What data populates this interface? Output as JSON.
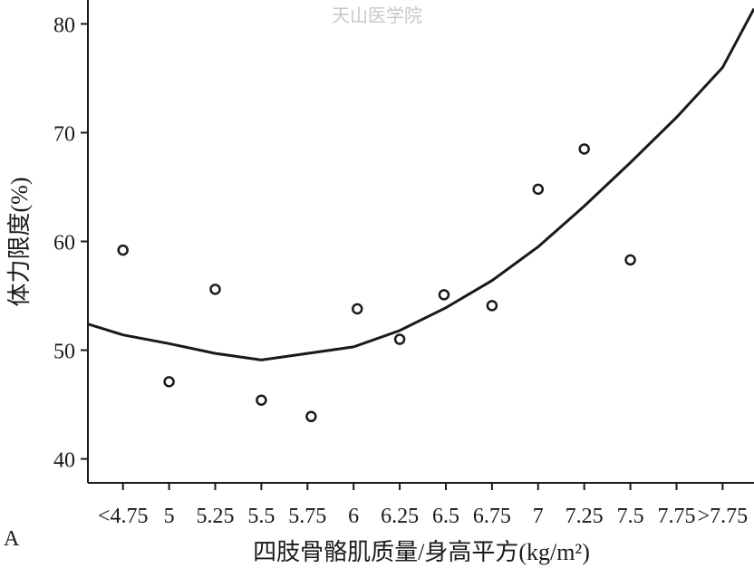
{
  "chart_data": {
    "type": "scatter",
    "watermark": "天山医学院",
    "panel_label": "A",
    "xlabel": "四肢骨骼肌质量/身高平方(kg/m²)",
    "ylabel": "体力限度(%)",
    "xlim": [
      4.56,
      8.17
    ],
    "ylim": [
      37.8,
      82.2
    ],
    "xticks": [
      {
        "value": 4.75,
        "label": "<4.75"
      },
      5,
      5.25,
      5.5,
      5.75,
      6,
      6.25,
      6.5,
      6.75,
      7,
      7.25,
      7.5,
      7.75,
      {
        "value": 8,
        "label": ">7.75"
      }
    ],
    "yticks": [
      40,
      50,
      60,
      70,
      80
    ],
    "series": [
      {
        "mode": "markers",
        "color": "#1a1a1a",
        "x": [
          4.75,
          5,
          5.25,
          5.5,
          5.77,
          6.02,
          6.25,
          6.49,
          6.75,
          7,
          7.25,
          7.5
        ],
        "values": [
          59.2,
          47.1,
          55.6,
          45.4,
          43.9,
          53.8,
          51.0,
          55.1,
          54.1,
          64.8,
          68.5,
          58.3
        ]
      },
      {
        "mode": "line",
        "color": "#1a1a1a",
        "x": [
          4.56,
          4.75,
          5,
          5.25,
          5.5,
          6,
          6.25,
          6.5,
          6.75,
          7,
          7.25,
          7.5,
          7.75,
          8,
          8.17
        ],
        "values": [
          52.4,
          51.4,
          50.6,
          49.7,
          49.1,
          50.3,
          51.8,
          53.9,
          56.4,
          59.5,
          63.25,
          67.25,
          71.4,
          76,
          81.4
        ]
      }
    ]
  }
}
